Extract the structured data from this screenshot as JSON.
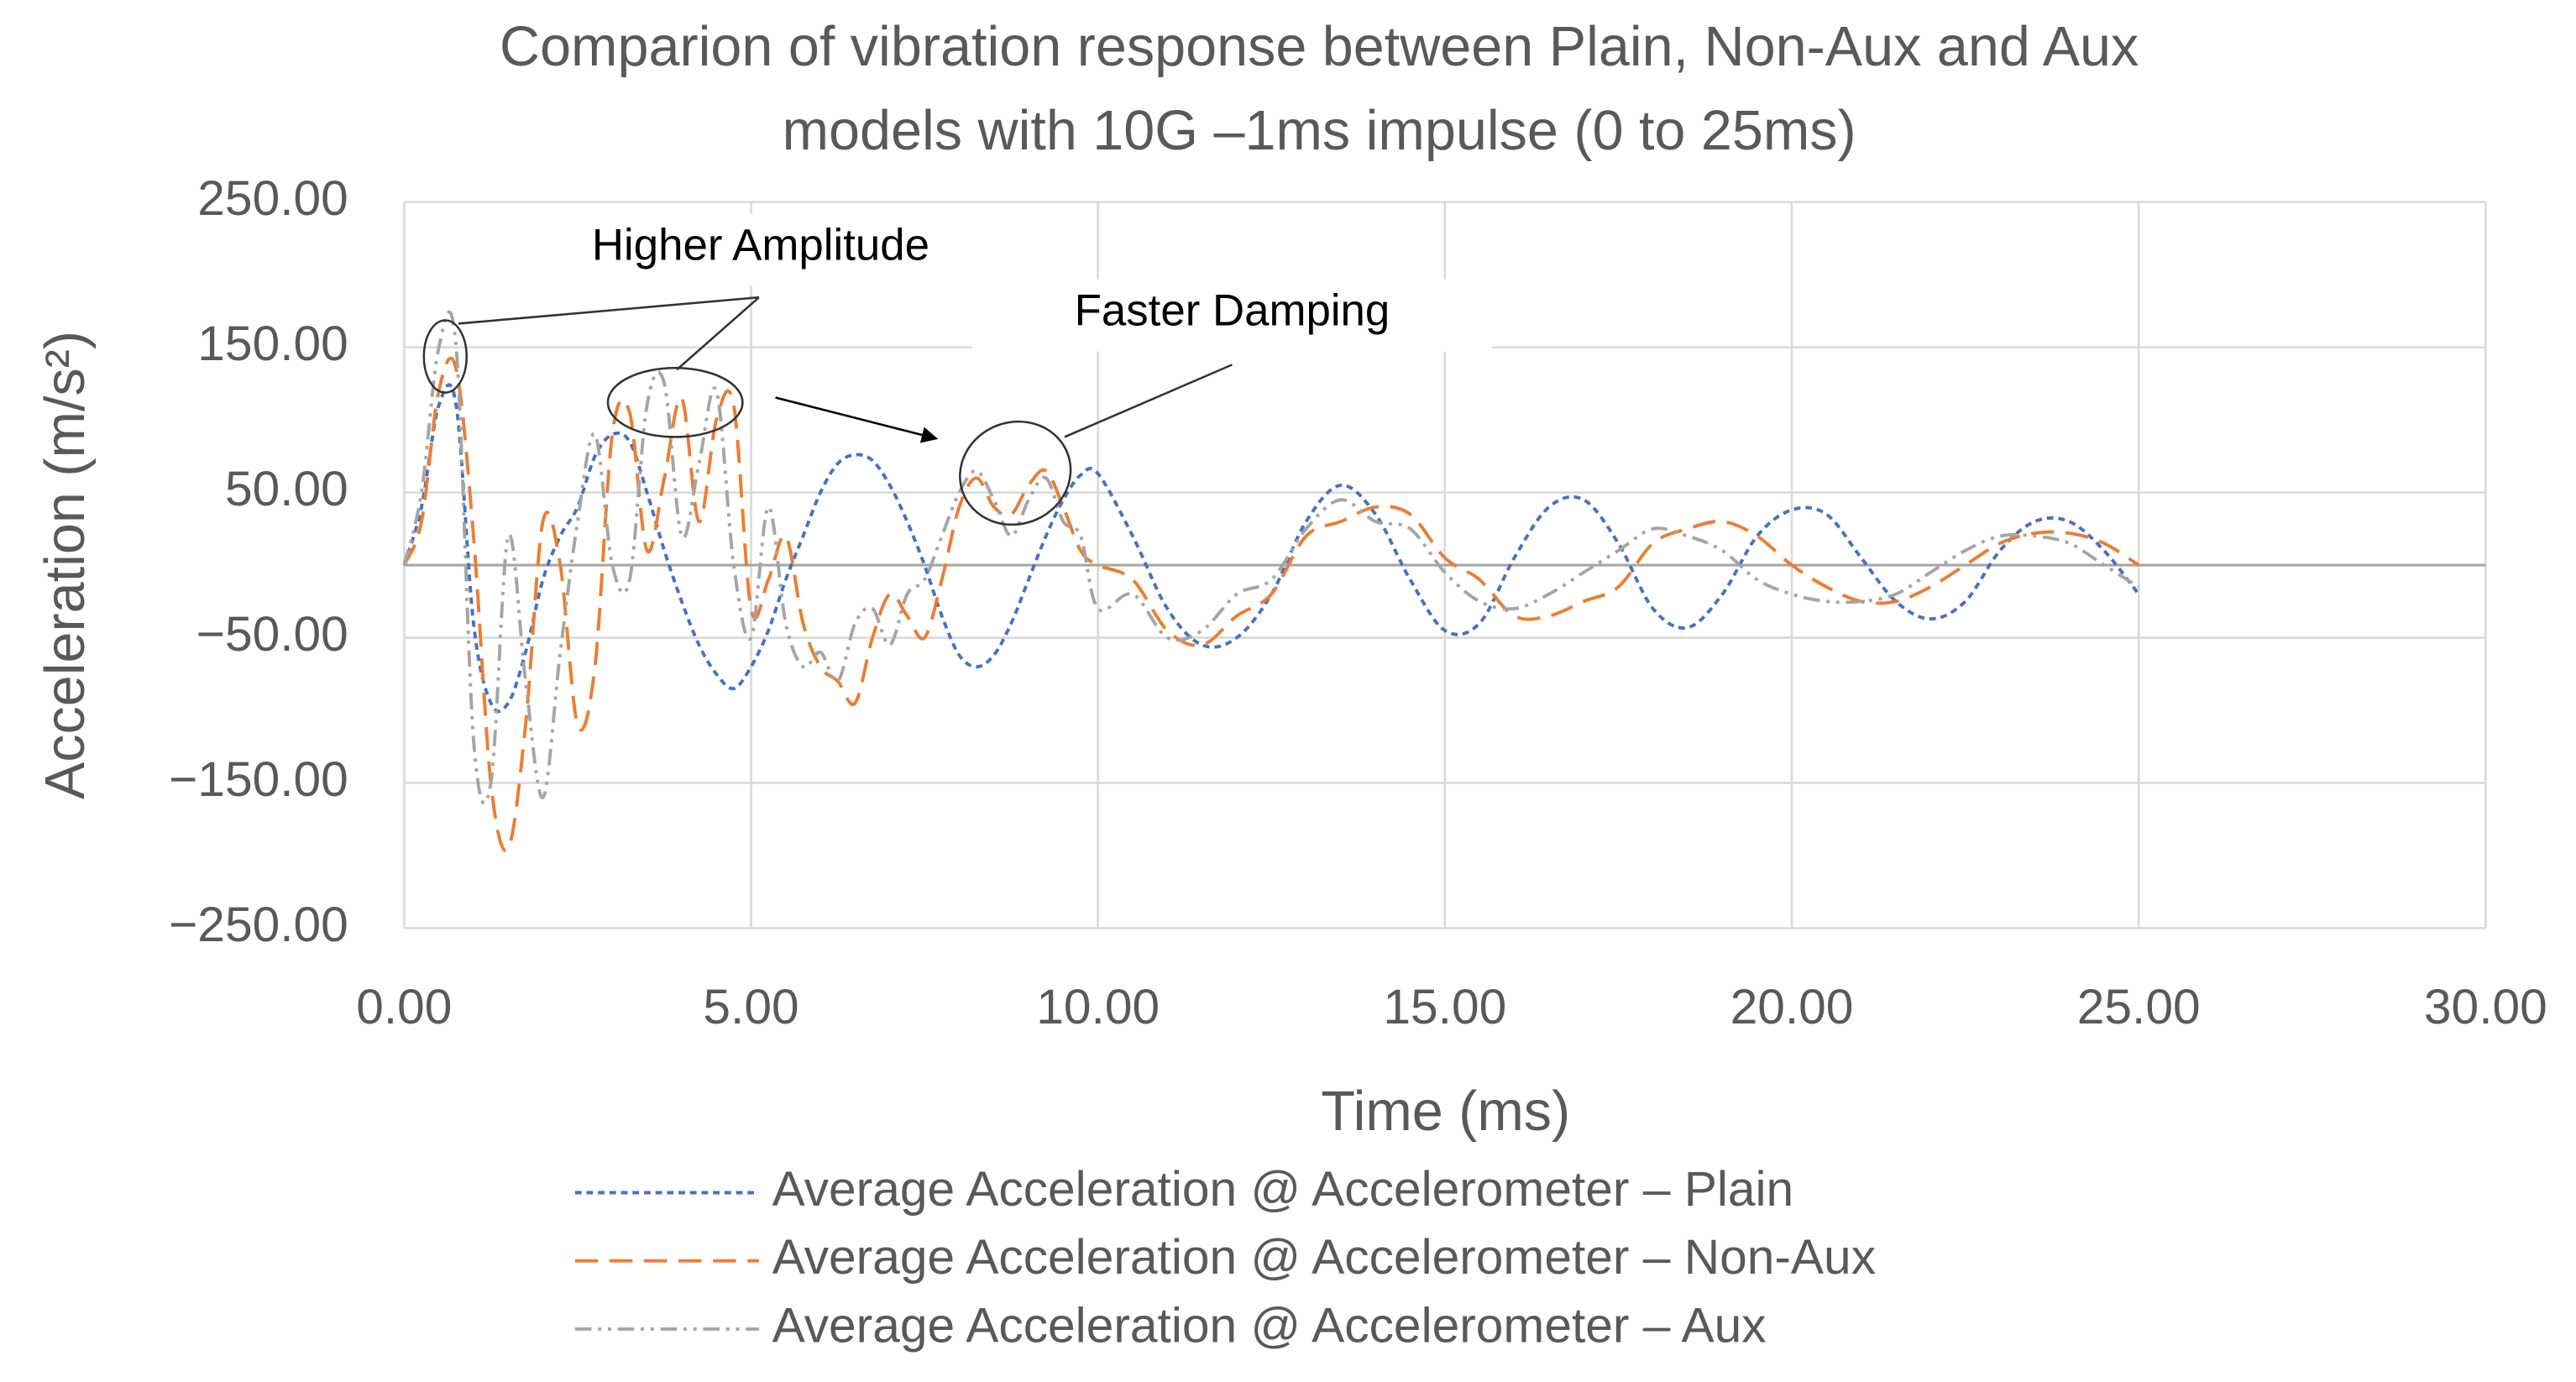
{
  "chart_data": {
    "type": "line",
    "title": [
      "Comparion of vibration response between Plain, Non-Aux and Aux",
      "models with 10G –1ms impulse (0 to 25ms)"
    ],
    "x_label": "Time (ms)",
    "y_label": "Acceleration (m/s²)",
    "annotations": [
      "Higher Amplitude",
      "Faster Damping"
    ],
    "x": [
      0,
      0.25,
      0.5,
      0.75,
      1,
      1.25,
      1.5,
      1.75,
      2,
      2.25,
      2.5,
      2.75,
      3,
      3.25,
      3.5,
      3.75,
      4,
      4.25,
      4.5,
      4.75,
      5,
      5.25,
      5.5,
      5.75,
      6,
      6.25,
      6.5,
      6.75,
      7,
      7.25,
      7.5,
      7.75,
      8,
      8.25,
      8.5,
      8.75,
      9,
      9.25,
      9.5,
      9.75,
      10,
      10.5,
      11,
      11.5,
      12,
      12.5,
      13,
      13.5,
      14,
      14.5,
      15,
      15.5,
      16,
      16.5,
      17,
      17.5,
      18,
      18.5,
      19,
      19.5,
      20,
      20.5,
      21,
      21.5,
      22,
      22.5,
      23,
      23.5,
      24,
      24.5,
      25
    ],
    "series": [
      {
        "name": "Average Acceleration @ Accelerometer – Plain",
        "color": "#4472c4",
        "dash": "4 3",
        "values": [
          0,
          40,
          110,
          110,
          -40,
          -95,
          -95,
          -60,
          -10,
          20,
          40,
          75,
          90,
          85,
          50,
          10,
          -25,
          -55,
          -75,
          -85,
          -70,
          -45,
          -10,
          20,
          50,
          70,
          76,
          72,
          55,
          30,
          0,
          -35,
          -62,
          -70,
          -62,
          -40,
          -10,
          20,
          45,
          62,
          63,
          20,
          -30,
          -55,
          -50,
          -20,
          30,
          55,
          35,
          -10,
          -45,
          -40,
          5,
          40,
          45,
          15,
          -30,
          -43,
          -20,
          20,
          38,
          35,
          5,
          -25,
          -37,
          -25,
          10,
          30,
          30,
          10,
          -20
        ]
      },
      {
        "name": "Average Acceleration @ Accelerometer – Non-Aux",
        "color": "#ed7d31",
        "dash": "14 7",
        "values": [
          0,
          30,
          120,
          135,
          20,
          -150,
          -195,
          -110,
          30,
          0,
          -110,
          -70,
          90,
          105,
          10,
          60,
          115,
          30,
          100,
          110,
          -30,
          -10,
          20,
          -40,
          -70,
          -80,
          -95,
          -50,
          -20,
          -35,
          -50,
          -10,
          40,
          60,
          40,
          35,
          55,
          65,
          40,
          10,
          0,
          -10,
          -45,
          -55,
          -35,
          -20,
          20,
          30,
          40,
          35,
          5,
          -10,
          -35,
          -35,
          -25,
          -15,
          15,
          25,
          30,
          20,
          0,
          -15,
          -25,
          -25,
          -15,
          0,
          15,
          22,
          22,
          15,
          0
        ]
      },
      {
        "name": "Average Acceleration @ Accelerometer – Aux",
        "color": "#a5a5a5",
        "dash": "10 4 2 4 2 4",
        "values": [
          0,
          50,
          150,
          150,
          -120,
          -150,
          20,
          -80,
          -160,
          -60,
          30,
          90,
          0,
          -10,
          110,
          125,
          20,
          70,
          120,
          0,
          -50,
          40,
          -40,
          -70,
          -60,
          -80,
          -40,
          -30,
          -55,
          -20,
          -10,
          20,
          50,
          65,
          45,
          20,
          45,
          60,
          30,
          20,
          -30,
          -20,
          -50,
          -45,
          -20,
          -10,
          25,
          45,
          30,
          25,
          -5,
          -25,
          -30,
          -20,
          -5,
          10,
          25,
          20,
          10,
          -10,
          -20,
          -25,
          -25,
          -20,
          -5,
          10,
          20,
          20,
          15,
          0,
          -15
        ]
      }
    ],
    "xlim": [
      0,
      30
    ],
    "ylim": [
      -250,
      250
    ],
    "xticks": [
      {
        "value": 0,
        "label": "0.00"
      },
      {
        "value": 5,
        "label": "5.00"
      },
      {
        "value": 10,
        "label": "10.00"
      },
      {
        "value": 15,
        "label": "15.00"
      },
      {
        "value": 20,
        "label": "20.00"
      },
      {
        "value": 25,
        "label": "25.00"
      },
      {
        "value": 30,
        "label": "30.00"
      }
    ],
    "yticks": [
      {
        "value": -250,
        "label": "−250.00"
      },
      {
        "value": -150,
        "label": "−150.00"
      },
      {
        "value": -50,
        "label": "−50.00"
      },
      {
        "value": 50,
        "label": "50.00"
      },
      {
        "value": 150,
        "label": "150.00"
      },
      {
        "value": 250,
        "label": "250.00"
      }
    ],
    "grid": true,
    "legend": "bottom"
  }
}
